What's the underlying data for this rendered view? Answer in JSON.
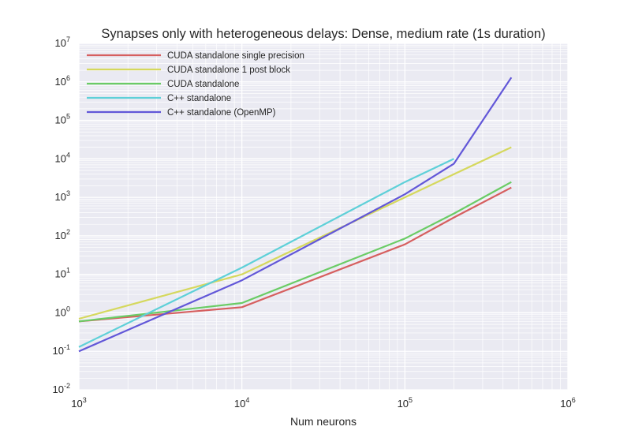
{
  "chart_data": {
    "type": "line",
    "title": "Synapses only with heterogeneous delays: Dense, medium rate (1s duration)",
    "xlabel": "Num neurons",
    "ylabel": "",
    "xscale": "log",
    "yscale": "log",
    "xlim": [
      1000,
      1000000
    ],
    "ylim": [
      0.01,
      10000000
    ],
    "x_ticks": [
      {
        "base": "10",
        "exp": "3"
      },
      {
        "base": "10",
        "exp": "4"
      },
      {
        "base": "10",
        "exp": "5"
      },
      {
        "base": "10",
        "exp": "6"
      }
    ],
    "y_ticks": [
      {
        "base": "10",
        "exp": "-2"
      },
      {
        "base": "10",
        "exp": "-1"
      },
      {
        "base": "10",
        "exp": "0"
      },
      {
        "base": "10",
        "exp": "1"
      },
      {
        "base": "10",
        "exp": "2"
      },
      {
        "base": "10",
        "exp": "3"
      },
      {
        "base": "10",
        "exp": "4"
      },
      {
        "base": "10",
        "exp": "5"
      },
      {
        "base": "10",
        "exp": "6"
      },
      {
        "base": "10",
        "exp": "7"
      }
    ],
    "grid": true,
    "legend_position": "top-left",
    "series": [
      {
        "name": "CUDA standalone single precision",
        "color": "#d65f5f",
        "x": [
          1000,
          10000,
          100000,
          200000,
          450000
        ],
        "y": [
          0.6,
          1.4,
          60,
          300,
          1800
        ]
      },
      {
        "name": "CUDA standalone 1 post block",
        "color": "#d5d85d",
        "x": [
          1000,
          10000,
          100000,
          200000,
          450000
        ],
        "y": [
          0.7,
          10,
          1000,
          4000,
          20000
        ]
      },
      {
        "name": "CUDA standalone",
        "color": "#6acc65",
        "x": [
          1000,
          10000,
          100000,
          200000,
          450000
        ],
        "y": [
          0.6,
          1.8,
          85,
          380,
          2500
        ]
      },
      {
        "name": "C++ standalone",
        "color": "#5ed0d8",
        "x": [
          1000,
          10000,
          100000,
          200000
        ],
        "y": [
          0.13,
          15,
          2500,
          10000
        ]
      },
      {
        "name": "C++ standalone (OpenMP)",
        "color": "#6257d8",
        "x": [
          1000,
          10000,
          100000,
          200000,
          450000
        ],
        "y": [
          0.1,
          7,
          1200,
          7500,
          1300000
        ]
      }
    ]
  }
}
